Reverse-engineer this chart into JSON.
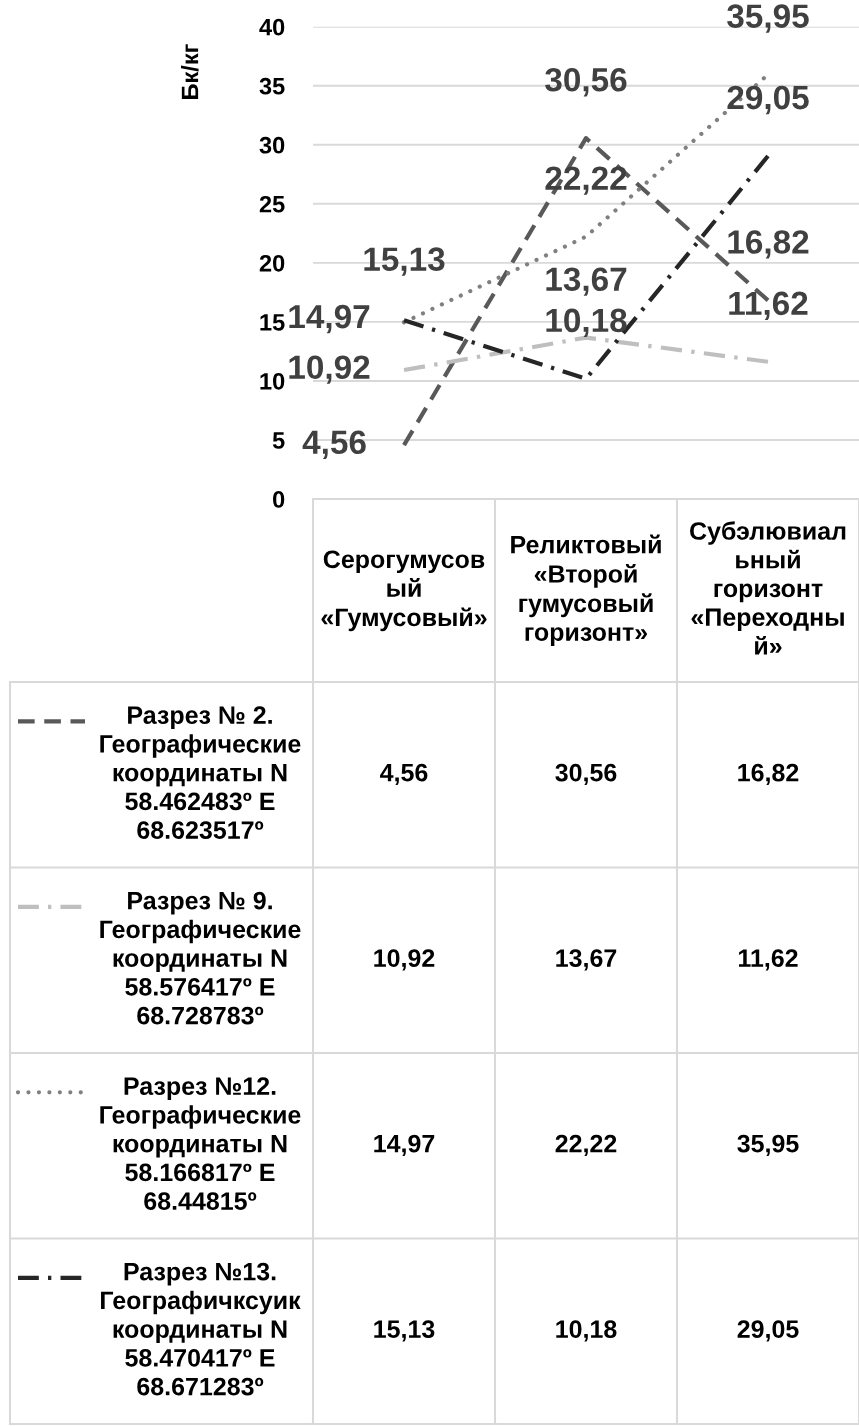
{
  "chart_data": {
    "type": "line",
    "ylabel": "Бк/кг",
    "categories": [
      "Серогумусовый «Гумусовый»",
      "Реликтовый «Второй гумусовый горизонт»",
      "Субэлювиальный горизонт «Переходный»"
    ],
    "series": [
      {
        "name": "Разрез № 2. Географические координаты N 58.462483º E 68.623517º",
        "color": "#595959",
        "line_style": "dashed",
        "values": [
          4.56,
          30.56,
          16.82
        ],
        "value_labels": [
          "4,56",
          "30,56",
          "16,82"
        ]
      },
      {
        "name": "Разрез № 9. Географические координаты N 58.576417º E 68.728783º",
        "color": "#bfbfbf",
        "line_style": "dashdot",
        "values": [
          10.92,
          13.67,
          11.62
        ],
        "value_labels": [
          "10,92",
          "13,67",
          "11,62"
        ]
      },
      {
        "name": "Разрез №12. Географические координаты N 58.166817º E 68.44815º",
        "color": "#808080",
        "line_style": "dotted",
        "values": [
          14.97,
          22.22,
          35.95
        ],
        "value_labels": [
          "14,97",
          "22,22",
          "35,95"
        ]
      },
      {
        "name": "Разрез №13. Географичксуик координаты N 58.470417º E 68.671283º",
        "color": "#262626",
        "line_style": "dashdot",
        "values": [
          15.13,
          10.18,
          29.05
        ],
        "value_labels": [
          "15,13",
          "10,18",
          "29,05"
        ]
      }
    ],
    "ylim": [
      0,
      40
    ],
    "yticks": [
      0,
      5,
      10,
      15,
      20,
      25,
      30,
      35,
      40
    ],
    "grid": "y",
    "legend": "bottom"
  }
}
